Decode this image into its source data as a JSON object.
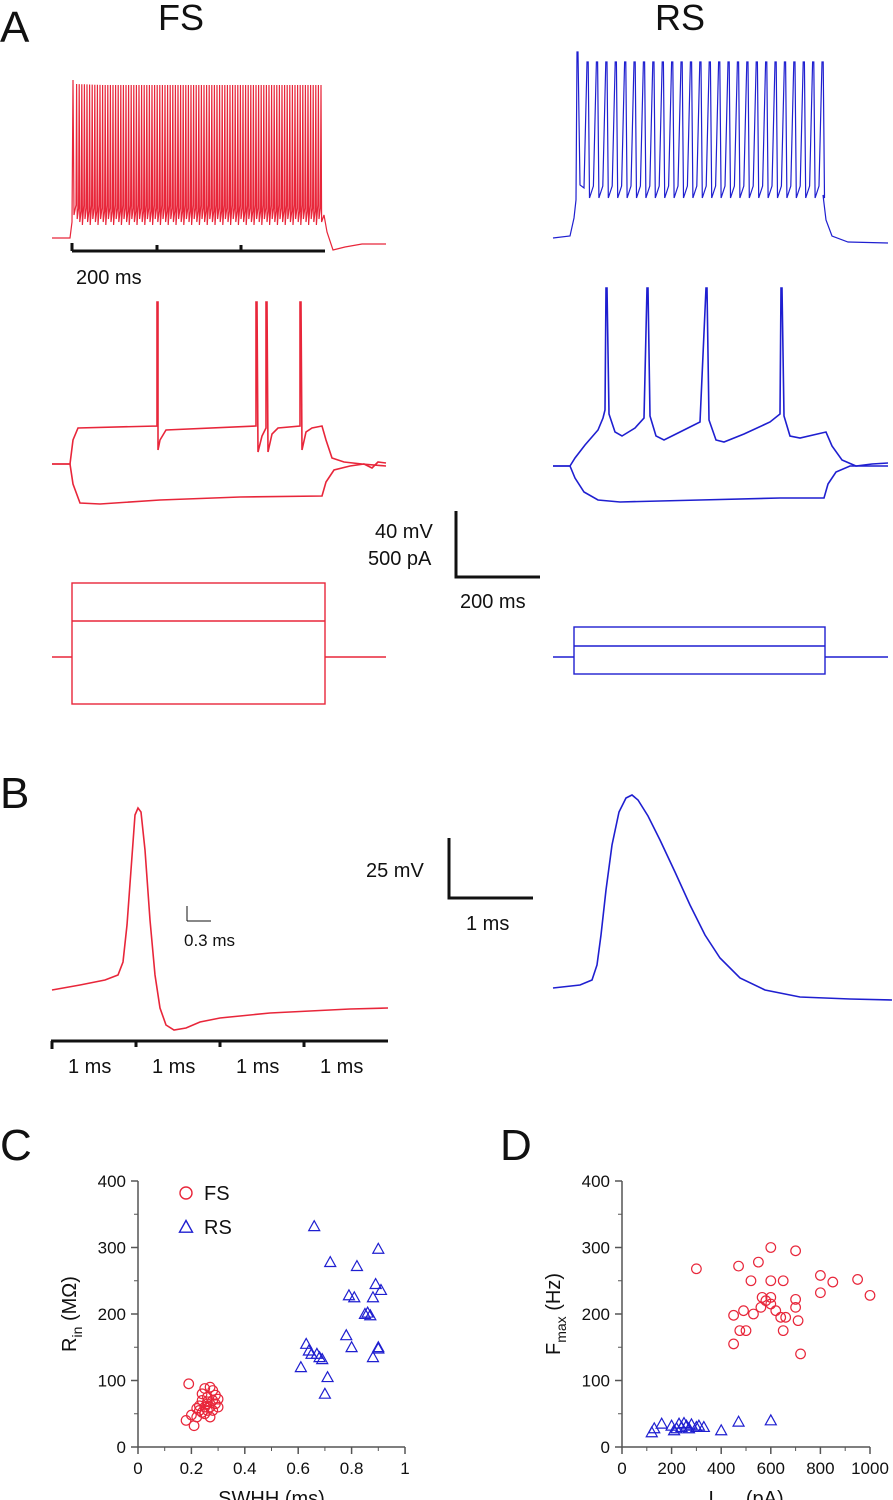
{
  "colors": {
    "fs": "#e8263a",
    "rs": "#1f1fd0",
    "ink": "#111111"
  },
  "panel_a": {
    "letter": "A",
    "fs_title": "FS",
    "rs_title": "RS",
    "fs_time_scale": "200 ms",
    "scale_voltage": "40 mV",
    "scale_current": "500 pA",
    "scale_time": "200 ms"
  },
  "panel_b": {
    "letter": "B",
    "inset_scale": "0.3 ms",
    "scale_voltage": "25 mV",
    "scale_time": "1 ms",
    "axis_segments": [
      "1 ms",
      "1 ms",
      "1 ms",
      "1 ms"
    ]
  },
  "chart_data": [
    {
      "panel": "C",
      "type": "scatter",
      "xlabel": "SWHH (ms)",
      "ylabel": "R",
      "ylabel_sub": "in",
      "ylabel_unit": " (MΩ)",
      "xlim": [
        0,
        1
      ],
      "ylim": [
        0,
        400
      ],
      "xticks": [
        0,
        0.2,
        0.4,
        0.6,
        0.8,
        1
      ],
      "xtick_labels": [
        "0",
        "0.2",
        "0.4",
        "0.6",
        "0.8",
        "1"
      ],
      "yticks": [
        0,
        100,
        200,
        300,
        400
      ],
      "legend": "upper-left",
      "series": [
        {
          "name": "FS",
          "marker": "circle",
          "color": "#e8263a",
          "points": [
            [
              0.18,
              40
            ],
            [
              0.19,
              95
            ],
            [
              0.2,
              48
            ],
            [
              0.21,
              32
            ],
            [
              0.22,
              45
            ],
            [
              0.23,
              62
            ],
            [
              0.23,
              55
            ],
            [
              0.24,
              80
            ],
            [
              0.24,
              70
            ],
            [
              0.25,
              50
            ],
            [
              0.25,
              60
            ],
            [
              0.25,
              88
            ],
            [
              0.26,
              65
            ],
            [
              0.26,
              75
            ],
            [
              0.26,
              55
            ],
            [
              0.27,
              90
            ],
            [
              0.27,
              60
            ],
            [
              0.27,
              45
            ],
            [
              0.28,
              70
            ],
            [
              0.28,
              85
            ],
            [
              0.28,
              55
            ],
            [
              0.29,
              65
            ],
            [
              0.29,
              78
            ],
            [
              0.3,
              60
            ],
            [
              0.3,
              72
            ],
            [
              0.22,
              58
            ],
            [
              0.24,
              52
            ],
            [
              0.26,
              68
            ]
          ]
        },
        {
          "name": "RS",
          "marker": "triangle",
          "color": "#1f1fd0",
          "points": [
            [
              0.61,
              120
            ],
            [
              0.63,
              155
            ],
            [
              0.64,
              145
            ],
            [
              0.65,
              140
            ],
            [
              0.66,
              332
            ],
            [
              0.67,
              140
            ],
            [
              0.68,
              135
            ],
            [
              0.69,
              132
            ],
            [
              0.7,
              80
            ],
            [
              0.71,
              105
            ],
            [
              0.72,
              278
            ],
            [
              0.78,
              168
            ],
            [
              0.79,
              228
            ],
            [
              0.8,
              150
            ],
            [
              0.81,
              225
            ],
            [
              0.82,
              272
            ],
            [
              0.85,
              200
            ],
            [
              0.86,
              202
            ],
            [
              0.87,
              198
            ],
            [
              0.88,
              225
            ],
            [
              0.88,
              135
            ],
            [
              0.89,
              245
            ],
            [
              0.9,
              148
            ],
            [
              0.9,
              150
            ],
            [
              0.9,
              298
            ],
            [
              0.91,
              236
            ]
          ]
        }
      ]
    },
    {
      "panel": "D",
      "type": "scatter",
      "xlabel": "I",
      "xlabel_sub": "max",
      "xlabel_unit": " (pA)",
      "ylabel": "F",
      "ylabel_sub": "max",
      "ylabel_unit": " (Hz)",
      "xlim": [
        0,
        1000
      ],
      "ylim": [
        0,
        400
      ],
      "xticks": [
        0,
        200,
        400,
        600,
        800,
        1000
      ],
      "xtick_labels": [
        "0",
        "200",
        "400",
        "600",
        "800",
        "1000"
      ],
      "yticks": [
        0,
        100,
        200,
        300,
        400
      ],
      "series": [
        {
          "name": "FS",
          "marker": "circle",
          "color": "#e8263a",
          "points": [
            [
              300,
              268
            ],
            [
              450,
              155
            ],
            [
              450,
              198
            ],
            [
              470,
              272
            ],
            [
              475,
              175
            ],
            [
              490,
              205
            ],
            [
              500,
              175
            ],
            [
              520,
              250
            ],
            [
              530,
              200
            ],
            [
              550,
              278
            ],
            [
              560,
              210
            ],
            [
              565,
              225
            ],
            [
              580,
              220
            ],
            [
              600,
              300
            ],
            [
              600,
              250
            ],
            [
              600,
              215
            ],
            [
              600,
              225
            ],
            [
              620,
              205
            ],
            [
              640,
              195
            ],
            [
              650,
              175
            ],
            [
              650,
              250
            ],
            [
              660,
              195
            ],
            [
              700,
              295
            ],
            [
              700,
              222
            ],
            [
              700,
              210
            ],
            [
              710,
              190
            ],
            [
              720,
              140
            ],
            [
              800,
              232
            ],
            [
              800,
              258
            ],
            [
              850,
              248
            ],
            [
              950,
              252
            ],
            [
              1000,
              228
            ]
          ]
        },
        {
          "name": "RS",
          "marker": "triangle",
          "color": "#1f1fd0",
          "points": [
            [
              120,
              22
            ],
            [
              130,
              28
            ],
            [
              160,
              35
            ],
            [
              200,
              32
            ],
            [
              210,
              25
            ],
            [
              220,
              28
            ],
            [
              230,
              35
            ],
            [
              240,
              30
            ],
            [
              250,
              36
            ],
            [
              260,
              32
            ],
            [
              270,
              28
            ],
            [
              280,
              34
            ],
            [
              300,
              30
            ],
            [
              310,
              32
            ],
            [
              330,
              30
            ],
            [
              400,
              25
            ],
            [
              470,
              38
            ],
            [
              600,
              40
            ]
          ]
        }
      ]
    }
  ]
}
